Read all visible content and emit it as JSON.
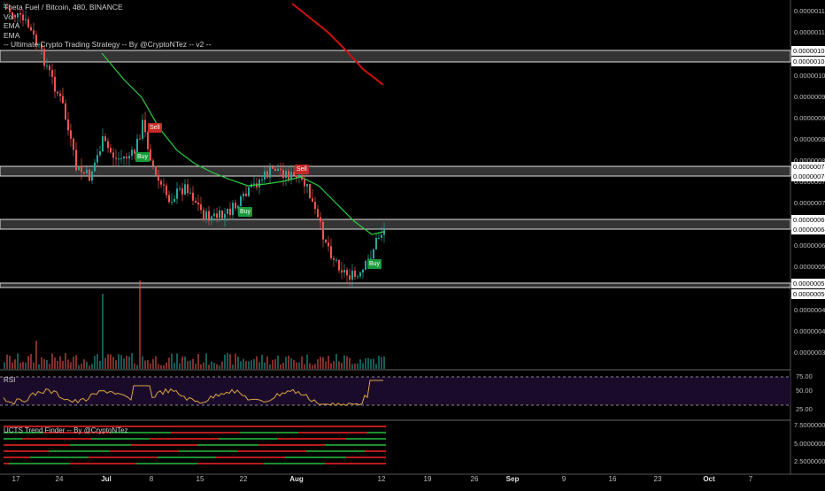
{
  "legend": {
    "line1": "Theta Fuel / Bitcoin, 480, BINANCE",
    "line2": "Vol",
    "line3": "EMA",
    "line4": "EMA",
    "line5": "-- Ultimate Crypto Trading Strategy -- By @CryptoNTez -- v2 --"
  },
  "rsi_label": "RSI",
  "trend_label": "UCTS Trend Finder -- By @CryptoNTez",
  "signals": {
    "buy": "Buy",
    "sell": "Sell"
  },
  "price_axis": [
    "0.00000115",
    "0.00000110",
    "0.00000100",
    "0.00000095",
    "0.00000090",
    "0.00000085",
    "0.00000080",
    "0.00000075",
    "0.00000070",
    "0.00000060",
    "0.00000055",
    "0.00000045",
    "0.00000040",
    "0.00000035"
  ],
  "price_boxes": [
    "0.00000106",
    "0.00000103",
    "0.00000078",
    "0.00000076",
    "0.00000066",
    "0.00000064",
    "0.00000051",
    "0.00000050"
  ],
  "rsi_axis": [
    "75.00",
    "50.00",
    "25.00"
  ],
  "trend_axis": [
    "7.5000000",
    "5.0000000",
    "2.5000000"
  ],
  "date_axis": [
    "17",
    "24",
    "Jul",
    "8",
    "15",
    "22",
    "Aug",
    "12",
    "19",
    "26",
    "Sep",
    "9",
    "16",
    "23",
    "Oct",
    "7"
  ],
  "colors": {
    "up": "#26a69a",
    "down": "#ef5350",
    "ema_fast": "#2ecc40",
    "ema_slow": "#d01010",
    "rsi_bg": "#1b0b2b",
    "rsi_line": "#d9a441"
  }
}
